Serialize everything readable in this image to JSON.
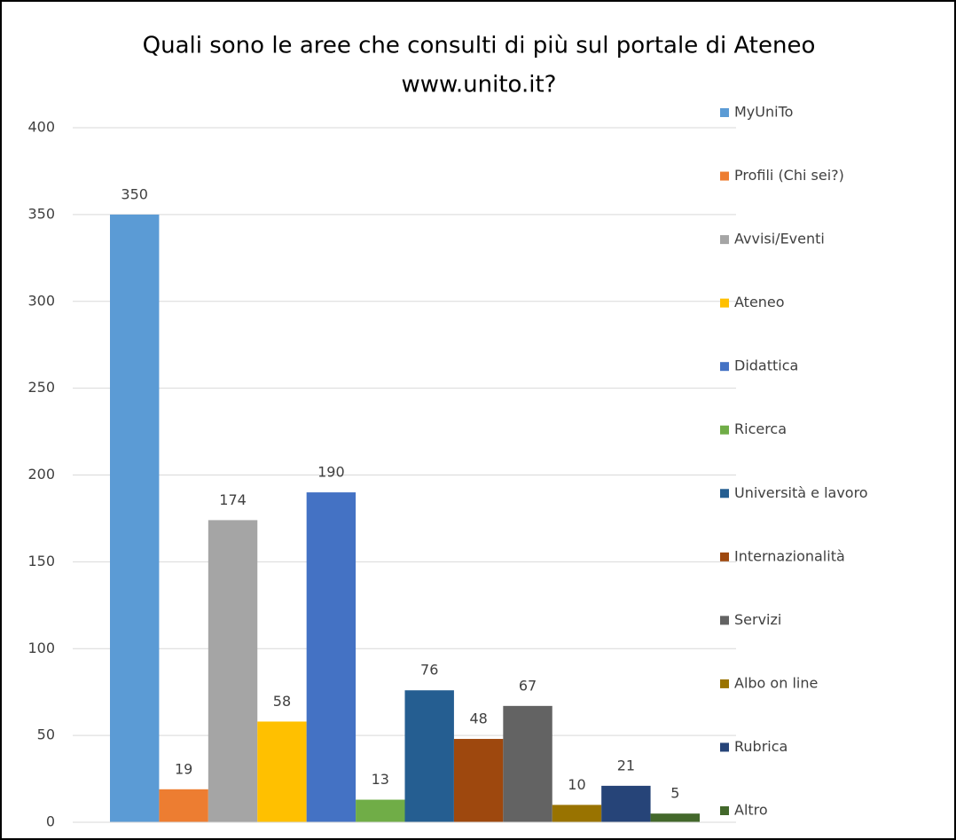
{
  "chart_data": {
    "type": "bar",
    "title": [
      "Quali sono le aree che consulti di più sul portale di Ateneo",
      "www.unito.it?"
    ],
    "series": [
      {
        "name": "MyUniTo",
        "color": "#5b9bd5",
        "values": [
          350
        ]
      },
      {
        "name": "Profili (Chi sei?)",
        "color": "#ed7d31",
        "values": [
          19
        ]
      },
      {
        "name": "Avvisi/Eventi",
        "color": "#a5a5a5",
        "values": [
          174
        ]
      },
      {
        "name": "Ateneo",
        "color": "#ffc000",
        "values": [
          58
        ]
      },
      {
        "name": "Didattica",
        "color": "#4472c4",
        "values": [
          190
        ]
      },
      {
        "name": "Ricerca",
        "color": "#70ad47",
        "values": [
          13
        ]
      },
      {
        "name": "Università e lavoro",
        "color": "#255e91",
        "values": [
          76
        ]
      },
      {
        "name": "Internazionalità",
        "color": "#9e480e",
        "values": [
          48
        ]
      },
      {
        "name": "Servizi",
        "color": "#636363",
        "values": [
          67
        ]
      },
      {
        "name": "Albo on line",
        "color": "#997300",
        "values": [
          10
        ]
      },
      {
        "name": "Rubrica",
        "color": "#264478",
        "values": [
          21
        ]
      },
      {
        "name": "Altro",
        "color": "#43682b",
        "values": [
          5
        ]
      }
    ],
    "ylim": [
      0,
      400
    ],
    "yticks": [
      0,
      50,
      100,
      150,
      200,
      250,
      300,
      350,
      400
    ],
    "grid": true,
    "legend": "right"
  }
}
